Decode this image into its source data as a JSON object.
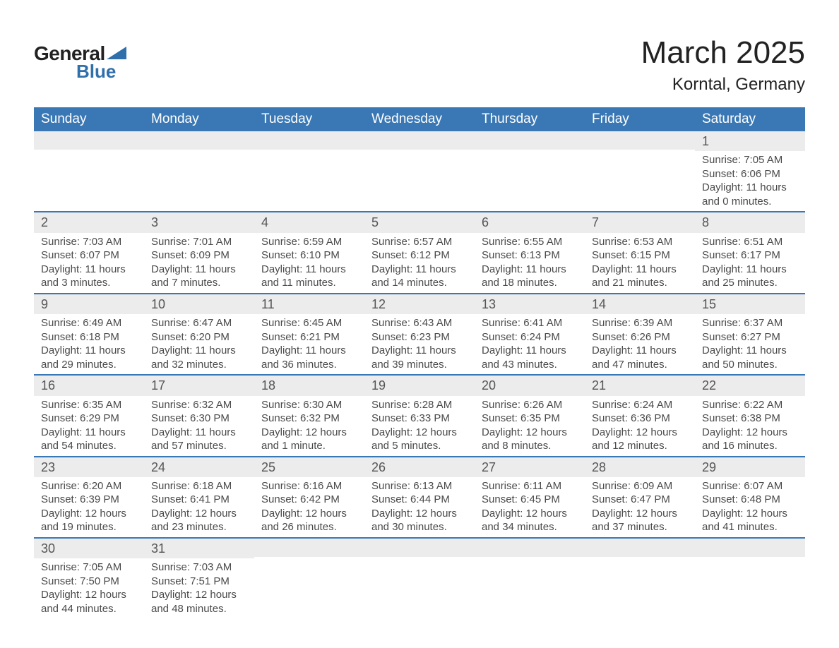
{
  "logo": {
    "text_general": "General",
    "text_blue": "Blue",
    "triangle_color": "#2f6fab"
  },
  "title": {
    "month": "March 2025",
    "location": "Korntal, Germany"
  },
  "colors": {
    "header_bg": "#3a78b5",
    "header_text": "#ffffff",
    "daynum_bg": "#ececec",
    "row_divider": "#3a78b5",
    "body_text": "#4a4a4a"
  },
  "day_headers": [
    "Sunday",
    "Monday",
    "Tuesday",
    "Wednesday",
    "Thursday",
    "Friday",
    "Saturday"
  ],
  "weeks": [
    [
      {
        "blank": true
      },
      {
        "blank": true
      },
      {
        "blank": true
      },
      {
        "blank": true
      },
      {
        "blank": true
      },
      {
        "blank": true
      },
      {
        "day": "1",
        "sunrise": "Sunrise: 7:05 AM",
        "sunset": "Sunset: 6:06 PM",
        "daylight": "Daylight: 11 hours and 0 minutes."
      }
    ],
    [
      {
        "day": "2",
        "sunrise": "Sunrise: 7:03 AM",
        "sunset": "Sunset: 6:07 PM",
        "daylight": "Daylight: 11 hours and 3 minutes."
      },
      {
        "day": "3",
        "sunrise": "Sunrise: 7:01 AM",
        "sunset": "Sunset: 6:09 PM",
        "daylight": "Daylight: 11 hours and 7 minutes."
      },
      {
        "day": "4",
        "sunrise": "Sunrise: 6:59 AM",
        "sunset": "Sunset: 6:10 PM",
        "daylight": "Daylight: 11 hours and 11 minutes."
      },
      {
        "day": "5",
        "sunrise": "Sunrise: 6:57 AM",
        "sunset": "Sunset: 6:12 PM",
        "daylight": "Daylight: 11 hours and 14 minutes."
      },
      {
        "day": "6",
        "sunrise": "Sunrise: 6:55 AM",
        "sunset": "Sunset: 6:13 PM",
        "daylight": "Daylight: 11 hours and 18 minutes."
      },
      {
        "day": "7",
        "sunrise": "Sunrise: 6:53 AM",
        "sunset": "Sunset: 6:15 PM",
        "daylight": "Daylight: 11 hours and 21 minutes."
      },
      {
        "day": "8",
        "sunrise": "Sunrise: 6:51 AM",
        "sunset": "Sunset: 6:17 PM",
        "daylight": "Daylight: 11 hours and 25 minutes."
      }
    ],
    [
      {
        "day": "9",
        "sunrise": "Sunrise: 6:49 AM",
        "sunset": "Sunset: 6:18 PM",
        "daylight": "Daylight: 11 hours and 29 minutes."
      },
      {
        "day": "10",
        "sunrise": "Sunrise: 6:47 AM",
        "sunset": "Sunset: 6:20 PM",
        "daylight": "Daylight: 11 hours and 32 minutes."
      },
      {
        "day": "11",
        "sunrise": "Sunrise: 6:45 AM",
        "sunset": "Sunset: 6:21 PM",
        "daylight": "Daylight: 11 hours and 36 minutes."
      },
      {
        "day": "12",
        "sunrise": "Sunrise: 6:43 AM",
        "sunset": "Sunset: 6:23 PM",
        "daylight": "Daylight: 11 hours and 39 minutes."
      },
      {
        "day": "13",
        "sunrise": "Sunrise: 6:41 AM",
        "sunset": "Sunset: 6:24 PM",
        "daylight": "Daylight: 11 hours and 43 minutes."
      },
      {
        "day": "14",
        "sunrise": "Sunrise: 6:39 AM",
        "sunset": "Sunset: 6:26 PM",
        "daylight": "Daylight: 11 hours and 47 minutes."
      },
      {
        "day": "15",
        "sunrise": "Sunrise: 6:37 AM",
        "sunset": "Sunset: 6:27 PM",
        "daylight": "Daylight: 11 hours and 50 minutes."
      }
    ],
    [
      {
        "day": "16",
        "sunrise": "Sunrise: 6:35 AM",
        "sunset": "Sunset: 6:29 PM",
        "daylight": "Daylight: 11 hours and 54 minutes."
      },
      {
        "day": "17",
        "sunrise": "Sunrise: 6:32 AM",
        "sunset": "Sunset: 6:30 PM",
        "daylight": "Daylight: 11 hours and 57 minutes."
      },
      {
        "day": "18",
        "sunrise": "Sunrise: 6:30 AM",
        "sunset": "Sunset: 6:32 PM",
        "daylight": "Daylight: 12 hours and 1 minute."
      },
      {
        "day": "19",
        "sunrise": "Sunrise: 6:28 AM",
        "sunset": "Sunset: 6:33 PM",
        "daylight": "Daylight: 12 hours and 5 minutes."
      },
      {
        "day": "20",
        "sunrise": "Sunrise: 6:26 AM",
        "sunset": "Sunset: 6:35 PM",
        "daylight": "Daylight: 12 hours and 8 minutes."
      },
      {
        "day": "21",
        "sunrise": "Sunrise: 6:24 AM",
        "sunset": "Sunset: 6:36 PM",
        "daylight": "Daylight: 12 hours and 12 minutes."
      },
      {
        "day": "22",
        "sunrise": "Sunrise: 6:22 AM",
        "sunset": "Sunset: 6:38 PM",
        "daylight": "Daylight: 12 hours and 16 minutes."
      }
    ],
    [
      {
        "day": "23",
        "sunrise": "Sunrise: 6:20 AM",
        "sunset": "Sunset: 6:39 PM",
        "daylight": "Daylight: 12 hours and 19 minutes."
      },
      {
        "day": "24",
        "sunrise": "Sunrise: 6:18 AM",
        "sunset": "Sunset: 6:41 PM",
        "daylight": "Daylight: 12 hours and 23 minutes."
      },
      {
        "day": "25",
        "sunrise": "Sunrise: 6:16 AM",
        "sunset": "Sunset: 6:42 PM",
        "daylight": "Daylight: 12 hours and 26 minutes."
      },
      {
        "day": "26",
        "sunrise": "Sunrise: 6:13 AM",
        "sunset": "Sunset: 6:44 PM",
        "daylight": "Daylight: 12 hours and 30 minutes."
      },
      {
        "day": "27",
        "sunrise": "Sunrise: 6:11 AM",
        "sunset": "Sunset: 6:45 PM",
        "daylight": "Daylight: 12 hours and 34 minutes."
      },
      {
        "day": "28",
        "sunrise": "Sunrise: 6:09 AM",
        "sunset": "Sunset: 6:47 PM",
        "daylight": "Daylight: 12 hours and 37 minutes."
      },
      {
        "day": "29",
        "sunrise": "Sunrise: 6:07 AM",
        "sunset": "Sunset: 6:48 PM",
        "daylight": "Daylight: 12 hours and 41 minutes."
      }
    ],
    [
      {
        "day": "30",
        "sunrise": "Sunrise: 7:05 AM",
        "sunset": "Sunset: 7:50 PM",
        "daylight": "Daylight: 12 hours and 44 minutes."
      },
      {
        "day": "31",
        "sunrise": "Sunrise: 7:03 AM",
        "sunset": "Sunset: 7:51 PM",
        "daylight": "Daylight: 12 hours and 48 minutes."
      },
      {
        "blank": true
      },
      {
        "blank": true
      },
      {
        "blank": true
      },
      {
        "blank": true
      },
      {
        "blank": true
      }
    ]
  ]
}
